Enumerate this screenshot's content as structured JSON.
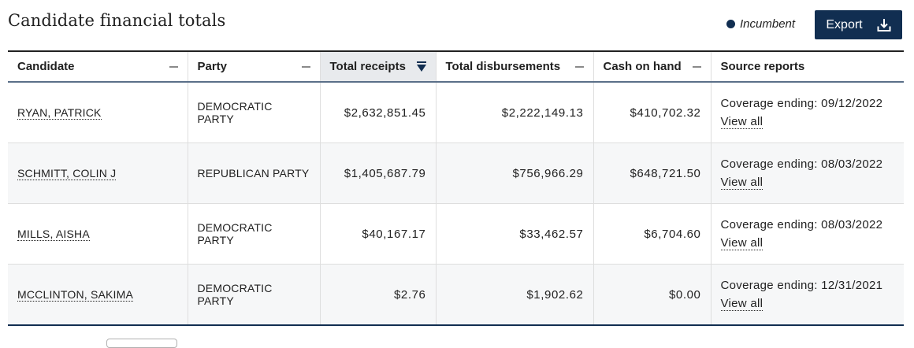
{
  "title": "Candidate financial totals",
  "legend": {
    "label": "Incumbent",
    "color": "#112e51"
  },
  "export": {
    "label": "Export",
    "icon": "download-icon"
  },
  "table": {
    "columns": [
      {
        "label": "Candidate",
        "icon": "minus-icon"
      },
      {
        "label": "Party",
        "icon": "minus-icon"
      },
      {
        "label": "Total receipts",
        "icon": "sort-descending-icon",
        "sorted": "descending"
      },
      {
        "label": "Total disbursements",
        "icon": "minus-icon"
      },
      {
        "label": "Cash on hand",
        "icon": "minus-icon"
      },
      {
        "label": "Source reports"
      }
    ],
    "rows": [
      {
        "candidate": "RYAN, PATRICK",
        "party": "DEMOCRATIC PARTY",
        "receipts": "$2,632,851.45",
        "disbursements": "$2,222,149.13",
        "cash": "$410,702.32",
        "coverage": "Coverage ending: 09/12/2022",
        "view_all": "View all"
      },
      {
        "candidate": "SCHMITT, COLIN J",
        "party": "REPUBLICAN PARTY",
        "receipts": "$1,405,687.79",
        "disbursements": "$756,966.29",
        "cash": "$648,721.50",
        "coverage": "Coverage ending: 08/03/2022",
        "view_all": "View all"
      },
      {
        "candidate": "MILLS, AISHA",
        "party": "DEMOCRATIC PARTY",
        "receipts": "$40,167.17",
        "disbursements": "$33,462.57",
        "cash": "$6,704.60",
        "coverage": "Coverage ending: 08/03/2022",
        "view_all": "View all"
      },
      {
        "candidate": "MCCLINTON, SAKIMA",
        "party": "DEMOCRATIC PARTY",
        "receipts": "$2.76",
        "disbursements": "$1,902.62",
        "cash": "$0.00",
        "coverage": "Coverage ending: 12/31/2021",
        "view_all": "View all"
      }
    ]
  },
  "colors": {
    "accent": "#112e51",
    "row_alt": "#f6f7f8",
    "header_sorted": "#e8eaed"
  }
}
